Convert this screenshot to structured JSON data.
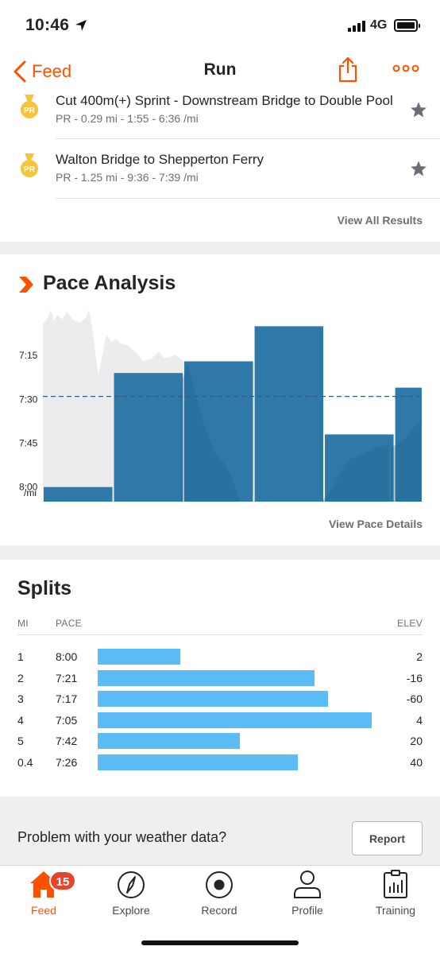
{
  "status_bar": {
    "time": "10:46",
    "network": "4G"
  },
  "nav": {
    "back_label": "Feed",
    "title": "Run"
  },
  "results": {
    "items": [
      {
        "title": "Cut 400m(+) Sprint - Downstream Bridge to Double Pool",
        "subtitle": "PR - 0.29 mi - 1:55 - 6:36 /mi",
        "badge": "PR"
      },
      {
        "title": "Walton Bridge to Shepperton Ferry",
        "subtitle": "PR - 1.25 mi - 9:36 - 7:39 /mi",
        "badge": "PR"
      }
    ],
    "view_all_label": "View All Results"
  },
  "pace_analysis": {
    "heading": "Pace Analysis",
    "view_details_label": "View Pace Details"
  },
  "chart_data": {
    "type": "bar",
    "title": "Pace Analysis",
    "y_tick_labels": [
      "7:15",
      "7:30",
      "7:45",
      "8:00"
    ],
    "y_unit_label": "/mi",
    "y_axis_inverted": true,
    "ylim_seconds_per_mi": [
      485,
      420
    ],
    "series": [
      {
        "segments": [
          "1",
          "2",
          "3",
          "4",
          "5",
          "0.4"
        ],
        "distance_mi": [
          1,
          1,
          1,
          1,
          1,
          0.4
        ],
        "pace": [
          "8:00",
          "7:21",
          "7:17",
          "7:05",
          "7:42",
          "7:26"
        ],
        "pace_seconds": [
          480,
          441,
          437,
          425,
          462,
          446
        ]
      }
    ],
    "average_pace": "7:29",
    "average_pace_seconds": 449,
    "colors": {
      "bars": "#2e79a8",
      "background_profile": "#ececef",
      "average_line": "#2d5f86"
    },
    "grid": false
  },
  "splits": {
    "heading": "Splits",
    "columns": {
      "mi": "MI",
      "pace": "PACE",
      "elev": "ELEV"
    },
    "rows": [
      {
        "mi": "1",
        "pace": "8:00",
        "elev": "2",
        "bar_fraction": 0.3
      },
      {
        "mi": "2",
        "pace": "7:21",
        "elev": "-16",
        "bar_fraction": 0.79
      },
      {
        "mi": "3",
        "pace": "7:17",
        "elev": "-60",
        "bar_fraction": 0.84
      },
      {
        "mi": "4",
        "pace": "7:05",
        "elev": "4",
        "bar_fraction": 1.0
      },
      {
        "mi": "5",
        "pace": "7:42",
        "elev": "20",
        "bar_fraction": 0.52
      },
      {
        "mi": "0.4",
        "pace": "7:26",
        "elev": "40",
        "bar_fraction": 0.73
      }
    ],
    "bar_color": "#5cbcf6"
  },
  "weather": {
    "question": "Problem with your weather data?",
    "report_label": "Report"
  },
  "tab_bar": {
    "tabs": [
      {
        "label": "Feed",
        "icon": "home-icon",
        "active": true,
        "badge": "15"
      },
      {
        "label": "Explore",
        "icon": "compass-icon"
      },
      {
        "label": "Record",
        "icon": "record-icon"
      },
      {
        "label": "Profile",
        "icon": "profile-icon"
      },
      {
        "label": "Training",
        "icon": "training-icon"
      }
    ]
  },
  "colors": {
    "accent": "#fc5200",
    "pr_gold": "#f5c43c",
    "badge_red": "#e7442b"
  }
}
